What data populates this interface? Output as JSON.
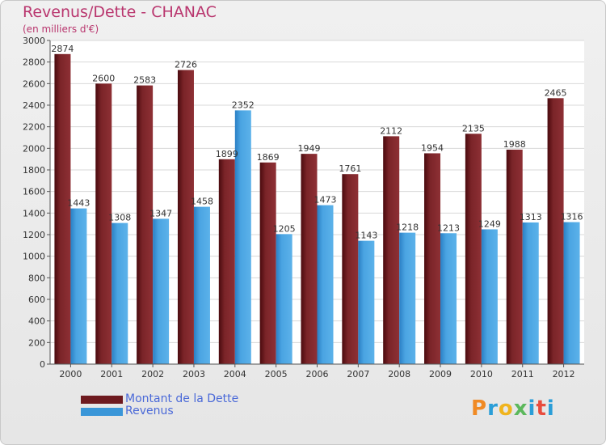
{
  "title": "Revenus/Dette - CHANAC",
  "subtitle": "(en milliers d'€)",
  "logo_text": "Proxiti",
  "logo_colors": [
    "#f08a24",
    "#2a9ed8",
    "#f0b41e",
    "#5cb85c",
    "#2a9ed8",
    "#e84c3d",
    "#2a9ed8"
  ],
  "colors": {
    "title": "#b9366e",
    "debt": "#6e1a1f",
    "revenue": "#3a96d8",
    "legend_text": "#4a69d8"
  },
  "chart_data": {
    "type": "bar",
    "categories": [
      "2000",
      "2001",
      "2002",
      "2003",
      "2004",
      "2005",
      "2006",
      "2007",
      "2008",
      "2009",
      "2010",
      "2011",
      "2012"
    ],
    "series": [
      {
        "name": "Montant de la Dette",
        "values": [
          2874,
          2600,
          2583,
          2726,
          1899,
          1869,
          1949,
          1761,
          2112,
          1954,
          2135,
          1988,
          2465
        ]
      },
      {
        "name": "Revenus",
        "values": [
          1443,
          1308,
          1347,
          1458,
          2352,
          1205,
          1473,
          1143,
          1218,
          1213,
          1249,
          1313,
          1316
        ]
      }
    ],
    "yticks": [
      0,
      200,
      400,
      600,
      800,
      1000,
      1200,
      1400,
      1600,
      1800,
      2000,
      2200,
      2400,
      2600,
      2800,
      3000
    ],
    "ylim": [
      0,
      3000
    ],
    "grid": true,
    "legend_position": "bottom-left"
  }
}
